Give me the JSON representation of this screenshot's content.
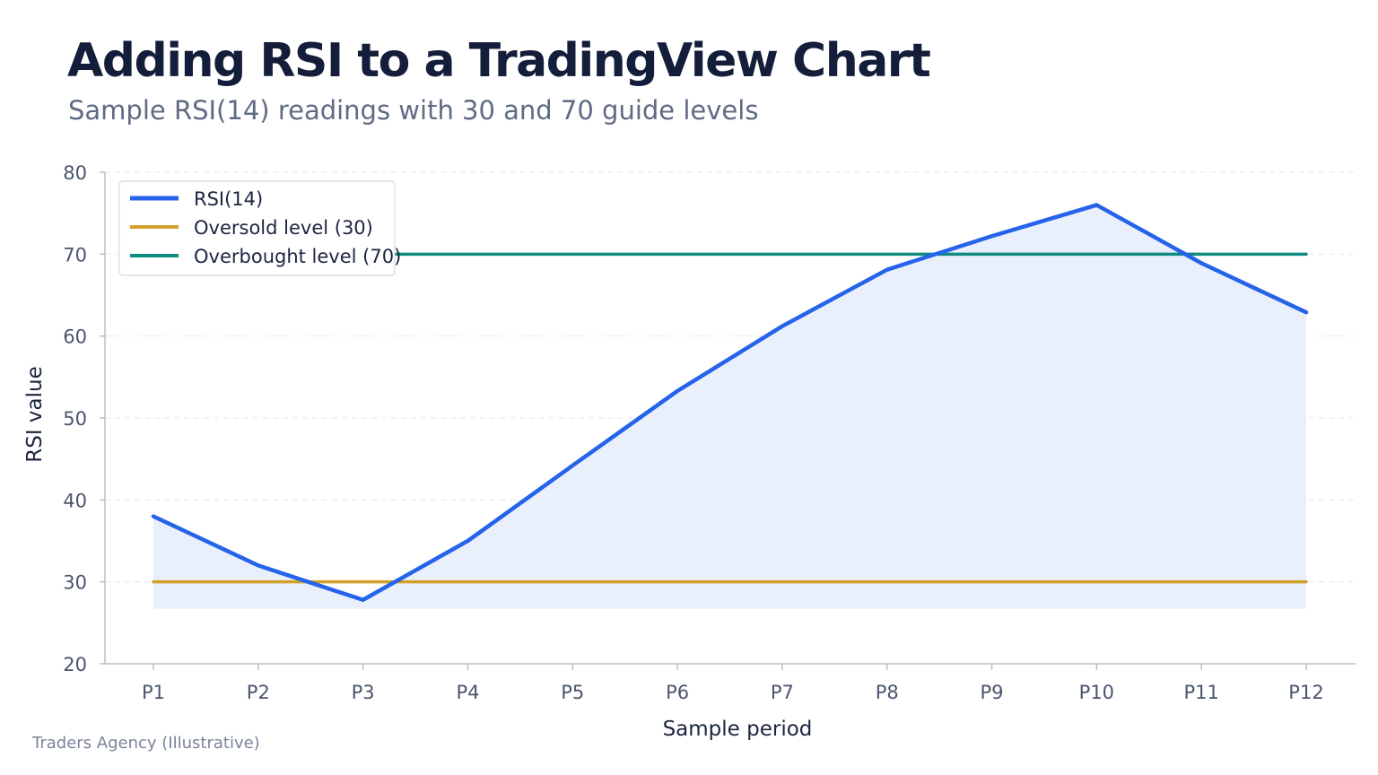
{
  "header": {
    "title": "Adding RSI to a TradingView Chart",
    "subtitle": "Sample RSI(14) readings with 30 and 70 guide levels"
  },
  "footer": {
    "source": "Traders Agency (Illustrative)"
  },
  "chart_data": {
    "type": "line",
    "title": "Adding RSI to a TradingView Chart",
    "subtitle": "Sample RSI(14) readings with 30 and 70 guide levels",
    "xlabel": "Sample period",
    "ylabel": "RSI value",
    "categories": [
      "P1",
      "P2",
      "P3",
      "P4",
      "P5",
      "P6",
      "P7",
      "P8",
      "P9",
      "P10",
      "P11",
      "P12"
    ],
    "ylim": [
      20,
      80
    ],
    "yticks": [
      20,
      30,
      40,
      50,
      60,
      70,
      80
    ],
    "grid": true,
    "legend_position": "top-left",
    "series": [
      {
        "name": "RSI(14)",
        "color": "#2563eb",
        "values": [
          38,
          32,
          27.8,
          35,
          44.2,
          53.3,
          61.2,
          68.1,
          72.2,
          76,
          68.9,
          62.9
        ]
      },
      {
        "name": "Oversold level (30)",
        "color": "#d4a02c",
        "values": [
          30,
          30,
          30,
          30,
          30,
          30,
          30,
          30,
          30,
          30,
          30,
          30
        ]
      },
      {
        "name": "Overbought level (70)",
        "color": "#0f8c7e",
        "values": [
          70,
          70,
          70,
          70,
          70,
          70,
          70,
          70,
          70,
          70,
          70,
          70
        ]
      }
    ],
    "area_fill_color": "#e8eefb"
  }
}
